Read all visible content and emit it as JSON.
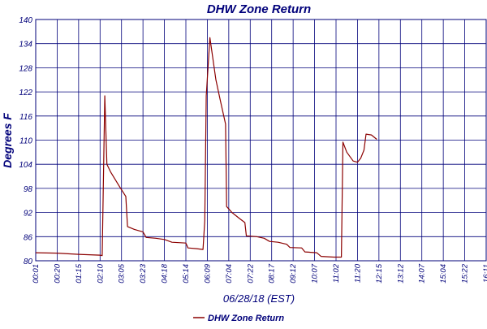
{
  "chart_data": {
    "type": "line",
    "title": "DHW Zone Return",
    "xlabel": "06/28/18 (EST)",
    "ylabel": "Degrees F",
    "ylim": [
      80,
      140
    ],
    "yticks": [
      "80",
      "86",
      "92",
      "98",
      "104",
      "110",
      "116",
      "122",
      "128",
      "134",
      "140"
    ],
    "xticks": [
      "00:01",
      "00:20",
      "01:15",
      "02:10",
      "03:05",
      "03:23",
      "04:18",
      "05:14",
      "06:09",
      "07:04",
      "07:22",
      "08:17",
      "09:12",
      "10:07",
      "11:02",
      "11:20",
      "12:15",
      "13:12",
      "14:07",
      "15:04",
      "15:22",
      "16:11"
    ],
    "grid": true,
    "legend_position": "bottom",
    "colors": {
      "series": "#8b0000",
      "axis_text": "#00007a",
      "grid": "#00007a"
    },
    "series": [
      {
        "name": "DHW Zone Return",
        "color": "#8b0000",
        "points": [
          [
            0.0,
            82.0
          ],
          [
            1.0,
            81.9
          ],
          [
            2.0,
            81.6
          ],
          [
            3.0,
            81.4
          ],
          [
            3.1,
            81.3
          ],
          [
            3.22,
            121.0
          ],
          [
            3.32,
            104.0
          ],
          [
            3.5,
            102.0
          ],
          [
            3.9,
            98.5
          ],
          [
            4.2,
            96.0
          ],
          [
            4.28,
            88.5
          ],
          [
            4.6,
            87.8
          ],
          [
            5.0,
            87.2
          ],
          [
            5.15,
            85.8
          ],
          [
            5.6,
            85.6
          ],
          [
            6.0,
            85.3
          ],
          [
            6.35,
            84.6
          ],
          [
            7.0,
            84.4
          ],
          [
            7.1,
            83.2
          ],
          [
            7.5,
            83.0
          ],
          [
            7.8,
            82.8
          ],
          [
            7.88,
            90.0
          ],
          [
            7.95,
            121.0
          ],
          [
            8.12,
            135.5
          ],
          [
            8.4,
            125.0
          ],
          [
            8.6,
            120.0
          ],
          [
            8.85,
            114.0
          ],
          [
            8.9,
            93.5
          ],
          [
            9.15,
            92.0
          ],
          [
            9.5,
            90.5
          ],
          [
            9.75,
            89.5
          ],
          [
            9.82,
            86.2
          ],
          [
            10.3,
            86.0
          ],
          [
            10.65,
            85.6
          ],
          [
            10.9,
            84.8
          ],
          [
            11.3,
            84.6
          ],
          [
            11.7,
            84.1
          ],
          [
            11.85,
            83.3
          ],
          [
            12.4,
            83.2
          ],
          [
            12.55,
            82.2
          ],
          [
            13.1,
            82.0
          ],
          [
            13.3,
            81.1
          ],
          [
            13.9,
            80.9
          ],
          [
            14.25,
            80.9
          ],
          [
            14.32,
            109.5
          ],
          [
            14.5,
            107.0
          ],
          [
            14.8,
            104.8
          ],
          [
            15.0,
            104.5
          ],
          [
            15.15,
            105.5
          ],
          [
            15.3,
            107.5
          ],
          [
            15.4,
            111.5
          ],
          [
            15.65,
            111.3
          ],
          [
            15.9,
            110.2
          ]
        ]
      }
    ]
  }
}
